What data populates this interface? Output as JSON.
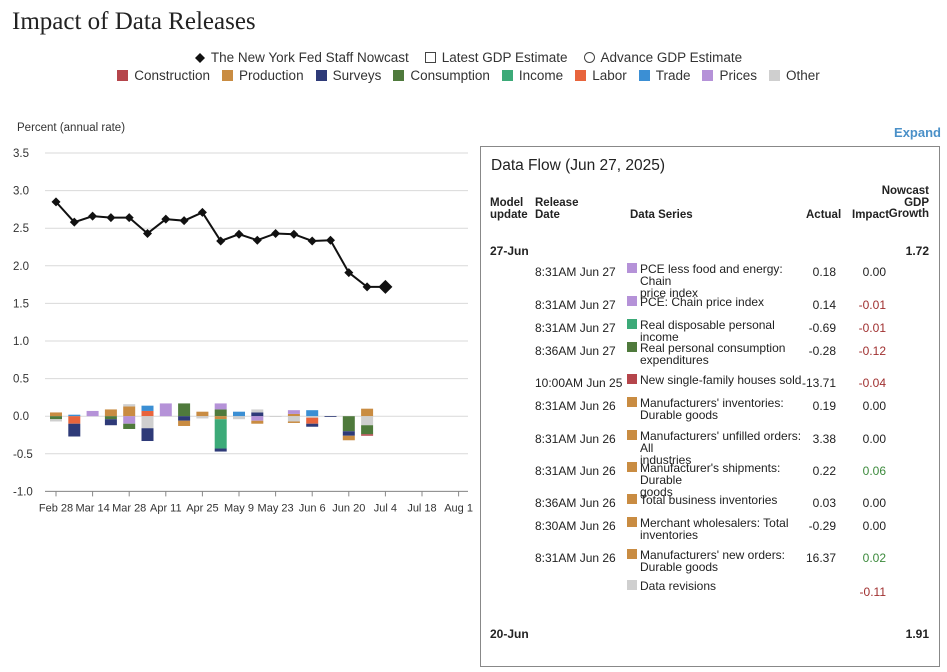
{
  "title": "Impact of Data Releases",
  "legend_markers": [
    {
      "label": "The New York Fed Staff Nowcast",
      "marker": "diamond-icon"
    },
    {
      "label": "Latest GDP Estimate",
      "marker": "square-outline-icon"
    },
    {
      "label": "Advance GDP Estimate",
      "marker": "circle-outline-icon"
    }
  ],
  "legend_categories": [
    {
      "label": "Construction",
      "color": "#b5454b"
    },
    {
      "label": "Production",
      "color": "#c98c42"
    },
    {
      "label": "Surveys",
      "color": "#2e3a78"
    },
    {
      "label": "Consumption",
      "color": "#4f7a3c"
    },
    {
      "label": "Income",
      "color": "#3caa78"
    },
    {
      "label": "Labor",
      "color": "#e8643c"
    },
    {
      "label": "Trade",
      "color": "#3b8fd4"
    },
    {
      "label": "Prices",
      "color": "#b592d8"
    },
    {
      "label": "Other",
      "color": "#cfcfcf"
    }
  ],
  "expand_label": "Expand",
  "chart_data": {
    "type": "line",
    "ylabel": "Percent (annual rate)",
    "ylim": [
      -1.0,
      3.5
    ],
    "yticks": [
      "3.5",
      "3.0",
      "2.5",
      "2.0",
      "1.5",
      "1.0",
      "0.5",
      "0.0",
      "-0.5",
      "-1.0"
    ],
    "xticks": [
      "Feb 28",
      "Mar 14",
      "Mar 28",
      "Apr 11",
      "Apr 25",
      "May 9",
      "May 23",
      "Jun 6",
      "Jun 20",
      "Jul 4",
      "Jul 18",
      "Aug 1"
    ],
    "grid": true,
    "nowcast": {
      "name": "The New York Fed Staff Nowcast",
      "x": [
        0,
        1,
        2,
        3,
        4,
        5,
        6,
        7,
        8,
        9,
        10,
        11,
        12,
        13,
        14,
        15,
        16,
        17,
        18
      ],
      "values": [
        2.85,
        2.58,
        2.66,
        2.64,
        2.64,
        2.43,
        2.62,
        2.6,
        2.71,
        2.33,
        2.42,
        2.34,
        2.43,
        2.42,
        2.33,
        2.34,
        1.91,
        1.72,
        1.72
      ]
    },
    "contribution_bars": [
      {
        "x": 0,
        "segments": [
          {
            "cat": "Production",
            "value": 0.05
          },
          {
            "cat": "Consumption",
            "value": -0.04
          },
          {
            "cat": "Other",
            "value": -0.03
          }
        ]
      },
      {
        "x": 1,
        "segments": [
          {
            "cat": "Trade",
            "value": 0.02
          },
          {
            "cat": "Labor",
            "value": -0.1
          },
          {
            "cat": "Surveys",
            "value": -0.17
          }
        ]
      },
      {
        "x": 2,
        "segments": [
          {
            "cat": "Prices",
            "value": 0.07
          }
        ]
      },
      {
        "x": 3,
        "segments": [
          {
            "cat": "Production",
            "value": 0.09
          },
          {
            "cat": "Consumption",
            "value": -0.04
          },
          {
            "cat": "Surveys",
            "value": -0.08
          }
        ]
      },
      {
        "x": 4,
        "segments": [
          {
            "cat": "Production",
            "value": 0.13
          },
          {
            "cat": "Other",
            "value": 0.03
          },
          {
            "cat": "Prices",
            "value": -0.1
          },
          {
            "cat": "Consumption",
            "value": -0.07
          }
        ]
      },
      {
        "x": 5,
        "segments": [
          {
            "cat": "Labor",
            "value": 0.07
          },
          {
            "cat": "Trade",
            "value": 0.07
          },
          {
            "cat": "Other",
            "value": -0.16
          },
          {
            "cat": "Surveys",
            "value": -0.17
          }
        ]
      },
      {
        "x": 6,
        "segments": [
          {
            "cat": "Prices",
            "value": 0.17
          }
        ]
      },
      {
        "x": 7,
        "segments": [
          {
            "cat": "Consumption",
            "value": 0.17
          },
          {
            "cat": "Surveys",
            "value": -0.06
          },
          {
            "cat": "Production",
            "value": -0.07
          }
        ]
      },
      {
        "x": 8,
        "segments": [
          {
            "cat": "Production",
            "value": 0.06
          },
          {
            "cat": "Other",
            "value": -0.03
          }
        ]
      },
      {
        "x": 9,
        "segments": [
          {
            "cat": "Consumption",
            "value": 0.09
          },
          {
            "cat": "Prices",
            "value": 0.08
          },
          {
            "cat": "Production",
            "value": -0.04
          },
          {
            "cat": "Income",
            "value": -0.39
          },
          {
            "cat": "Surveys",
            "value": -0.04
          }
        ]
      },
      {
        "x": 10,
        "segments": [
          {
            "cat": "Trade",
            "value": 0.06
          },
          {
            "cat": "Other",
            "value": -0.04
          }
        ]
      },
      {
        "x": 11,
        "segments": [
          {
            "cat": "Surveys",
            "value": 0.05
          },
          {
            "cat": "Other",
            "value": 0.04
          },
          {
            "cat": "Prices",
            "value": -0.06
          },
          {
            "cat": "Production",
            "value": -0.04
          }
        ]
      },
      {
        "x": 12,
        "segments": [
          {
            "cat": "Other",
            "value": -0.01
          }
        ]
      },
      {
        "x": 13,
        "segments": [
          {
            "cat": "Production",
            "value": 0.03
          },
          {
            "cat": "Prices",
            "value": 0.05
          },
          {
            "cat": "Other",
            "value": -0.07
          },
          {
            "cat": "Production",
            "value": -0.02
          }
        ]
      },
      {
        "x": 14,
        "segments": [
          {
            "cat": "Trade",
            "value": 0.08
          },
          {
            "cat": "Other",
            "value": -0.02
          },
          {
            "cat": "Labor",
            "value": -0.08
          },
          {
            "cat": "Surveys",
            "value": -0.04
          }
        ]
      },
      {
        "x": 15,
        "segments": [
          {
            "cat": "Surveys",
            "value": -0.01
          }
        ]
      },
      {
        "x": 16,
        "segments": [
          {
            "cat": "Consumption",
            "value": -0.2
          },
          {
            "cat": "Surveys",
            "value": -0.06
          },
          {
            "cat": "Production",
            "value": -0.06
          }
        ]
      },
      {
        "x": 17,
        "segments": [
          {
            "cat": "Production",
            "value": 0.1
          },
          {
            "cat": "Other",
            "value": -0.12
          },
          {
            "cat": "Consumption",
            "value": -0.12
          },
          {
            "cat": "Construction",
            "value": -0.02
          }
        ]
      }
    ]
  },
  "panel": {
    "title": "Data Flow (Jun 27, 2025)",
    "headers": {
      "model_update_1": "Model",
      "model_update_2": "update",
      "release_date_1": "Release",
      "release_date_2": "Date",
      "data_series": "Data Series",
      "actual": "Actual",
      "impact": "Impact",
      "nowcast_1": "Nowcast",
      "nowcast_2": "GDP",
      "nowcast_3": "Growth"
    },
    "groups": [
      {
        "date": "27-Jun",
        "nowcast": "1.72"
      },
      {
        "date": "20-Jun",
        "nowcast": "1.91"
      }
    ],
    "rows": [
      {
        "release": "8:31AM Jun 27",
        "series_1": "PCE less food and energy: Chain",
        "series_2": "price index",
        "color": "#b592d8",
        "actual": "0.18",
        "impact": "0.00",
        "sign": "zero"
      },
      {
        "release": "8:31AM Jun 27",
        "series_1": "PCE: Chain price index",
        "series_2": "",
        "color": "#b592d8",
        "actual": "0.14",
        "impact": "-0.01",
        "sign": "neg"
      },
      {
        "release": "8:31AM Jun 27",
        "series_1": "Real disposable personal income",
        "series_2": "",
        "color": "#3caa78",
        "actual": "-0.69",
        "impact": "-0.01",
        "sign": "neg"
      },
      {
        "release": "8:36AM Jun 27",
        "series_1": "Real personal consumption",
        "series_2": "expenditures",
        "color": "#4f7a3c",
        "actual": "-0.28",
        "impact": "-0.12",
        "sign": "neg"
      },
      {
        "release": "10:00AM Jun 25",
        "series_1": "New single-family houses sold",
        "series_2": "",
        "color": "#b5454b",
        "actual": "-13.71",
        "impact": "-0.04",
        "sign": "neg"
      },
      {
        "release": "8:31AM Jun 26",
        "series_1": "Manufacturers' inventories:",
        "series_2": "Durable goods",
        "color": "#c98c42",
        "actual": "0.19",
        "impact": "0.00",
        "sign": "zero"
      },
      {
        "release": "8:31AM Jun 26",
        "series_1": "Manufacturers' unfilled orders: All",
        "series_2": "industries",
        "color": "#c98c42",
        "actual": "3.38",
        "impact": "0.00",
        "sign": "zero"
      },
      {
        "release": "8:31AM Jun 26",
        "series_1": "Manufacturer's shipments: Durable",
        "series_2": "goods",
        "color": "#c98c42",
        "actual": "0.22",
        "impact": "0.06",
        "sign": "pos"
      },
      {
        "release": "8:36AM Jun 26",
        "series_1": "Total business inventories",
        "series_2": "",
        "color": "#c98c42",
        "actual": "0.03",
        "impact": "0.00",
        "sign": "zero"
      },
      {
        "release": "8:30AM Jun 26",
        "series_1": "Merchant wholesalers: Total",
        "series_2": "inventories",
        "color": "#c98c42",
        "actual": "-0.29",
        "impact": "0.00",
        "sign": "zero"
      },
      {
        "release": "8:31AM Jun 26",
        "series_1": "Manufacturers' new orders:",
        "series_2": "Durable goods",
        "color": "#c98c42",
        "actual": "16.37",
        "impact": "0.02",
        "sign": "pos"
      },
      {
        "release": "",
        "series_1": "Data revisions",
        "series_2": "",
        "color": "#cfcfcf",
        "actual": "",
        "impact": "-0.11",
        "sign": "neg"
      }
    ]
  }
}
